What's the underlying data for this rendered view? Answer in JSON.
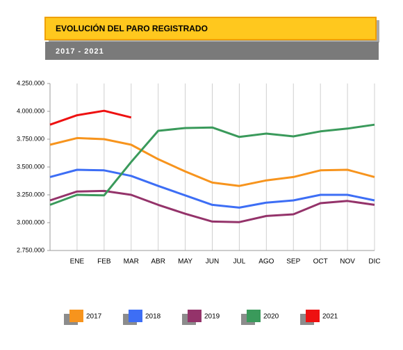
{
  "chart_data": {
    "type": "line",
    "title": "EVOLUCIÓN DEL PARO REGISTRADO",
    "subtitle": "2017 - 2021",
    "categories": [
      null,
      "ENE",
      "FEB",
      "MAR",
      "ABR",
      "MAY",
      "JUN",
      "JUL",
      "AGO",
      "SEP",
      "OCT",
      "NOV",
      "DIC"
    ],
    "series": [
      {
        "name": "2017",
        "color": "#f7941d",
        "values": [
          3700000,
          3760000,
          3750000,
          3700000,
          3570000,
          3460000,
          3360000,
          3330000,
          3380000,
          3410000,
          3470000,
          3475000,
          3410000
        ]
      },
      {
        "name": "2018",
        "color": "#3d6ef5",
        "values": [
          3410000,
          3475000,
          3470000,
          3420000,
          3330000,
          3245000,
          3160000,
          3135000,
          3180000,
          3200000,
          3250000,
          3250000,
          3200000
        ]
      },
      {
        "name": "2019",
        "color": "#94336a",
        "values": [
          3200000,
          3280000,
          3285000,
          3250000,
          3160000,
          3080000,
          3010000,
          3005000,
          3060000,
          3075000,
          3175000,
          3195000,
          3160000
        ]
      },
      {
        "name": "2020",
        "color": "#3a9a5b",
        "values": [
          3160000,
          3250000,
          3245000,
          3545000,
          3825000,
          3850000,
          3855000,
          3770000,
          3800000,
          3775000,
          3820000,
          3845000,
          3880000
        ]
      },
      {
        "name": "2021",
        "color": "#ee1111",
        "values": [
          3880000,
          3965000,
          4005000,
          3945000,
          null,
          null,
          null,
          null,
          null,
          null,
          null,
          null,
          null
        ]
      }
    ],
    "ylim": [
      2750000,
      4250000
    ],
    "yticks": [
      {
        "value": 2750000,
        "label": "2.750.000"
      },
      {
        "value": 3000000,
        "label": "3.000.000"
      },
      {
        "value": 3250000,
        "label": "3.250.000"
      },
      {
        "value": 3500000,
        "label": "3.500.000"
      },
      {
        "value": 3750000,
        "label": "3.750.000"
      },
      {
        "value": 4000000,
        "label": "4.000.000"
      },
      {
        "value": 4250000,
        "label": "4.250.000"
      }
    ],
    "legend": "bottom"
  }
}
